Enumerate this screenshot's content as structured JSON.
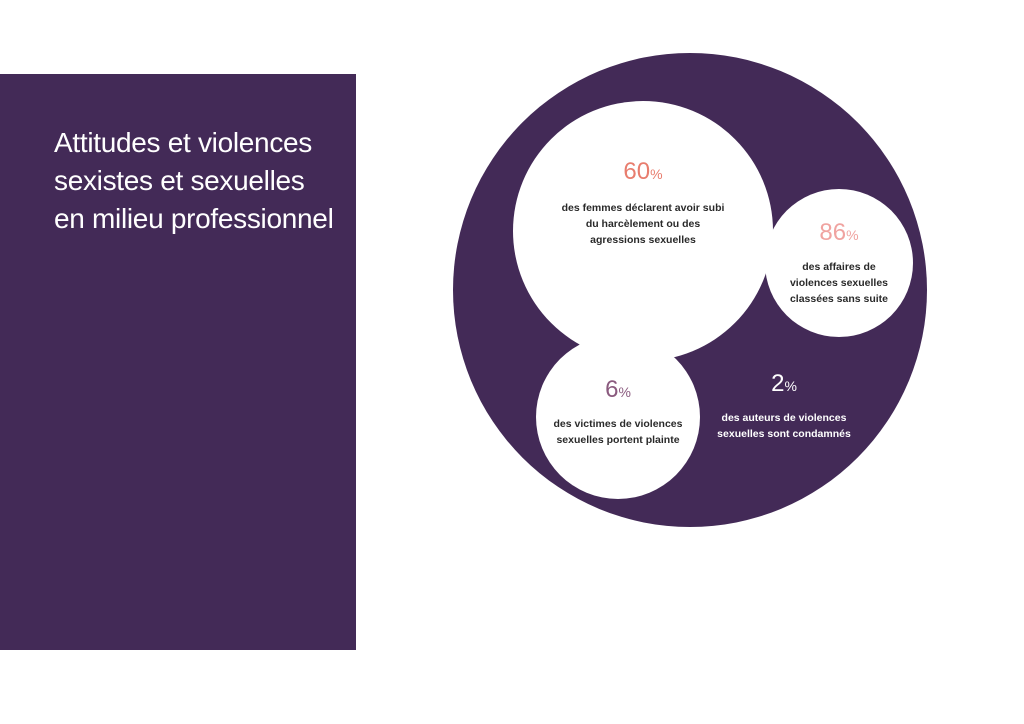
{
  "title": "Attitudes et violences sexistes et sexuelles en milieu professionnel",
  "colors": {
    "panel": "#432a57",
    "accent_60": "#e87d6e",
    "accent_86": "#f0a3a0",
    "accent_6": "#8a5a7e"
  },
  "stats": {
    "s60": {
      "value": "60",
      "unit": "%",
      "description": "des femmes déclarent avoir subi du harcèlement ou des agressions sexuelles"
    },
    "s86": {
      "value": "86",
      "unit": "%",
      "description": "des affaires de violences sexuelles classées sans suite"
    },
    "s6": {
      "value": "6",
      "unit": "%",
      "description": "des victimes de violences sexuelles portent plainte"
    },
    "s2": {
      "value": "2",
      "unit": "%",
      "description": "des auteurs de violences sexuelles sont condamnés"
    }
  }
}
